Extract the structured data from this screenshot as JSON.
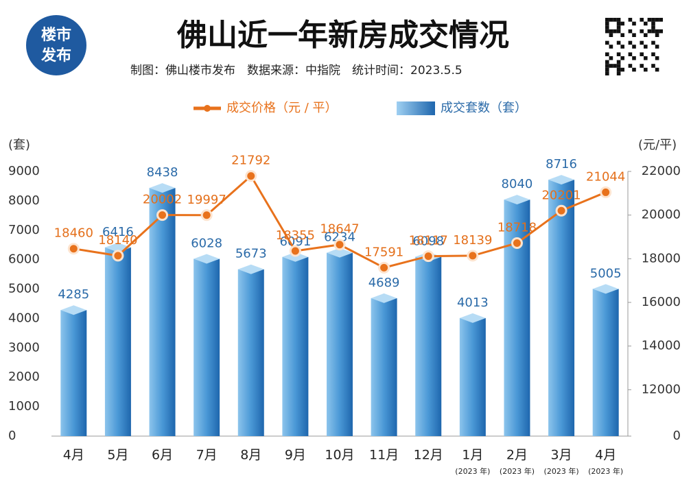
{
  "chart_data": {
    "type": "bar_line",
    "logo": [
      "楼市",
      "发布"
    ],
    "title": "佛山近一年新房成交情况",
    "subtitle": "制图：佛山楼市发布　数据来源：中指院　统计时间：2023.5.5",
    "y_label": "(套)",
    "y2_label": "(元/平)",
    "categories": [
      "4月",
      "5月",
      "6月",
      "7月",
      "8月",
      "9月",
      "10月",
      "11月",
      "12月",
      "1月",
      "2月",
      "3月",
      "4月"
    ],
    "category_notes": [
      null,
      null,
      null,
      null,
      null,
      null,
      null,
      null,
      null,
      "(2023 年)",
      "(2023 年)",
      "(2023 年)",
      "(2023 年)"
    ],
    "series": [
      {
        "name": "成交价格（元 / 平）",
        "color": "#e8721c",
        "axis": "y2",
        "type": "line",
        "values": [
          18460,
          18140,
          20002,
          19997,
          21792,
          18355,
          18647,
          17591,
          18117,
          18139,
          18718,
          20201,
          21044
        ]
      },
      {
        "name": "成交套数（套）",
        "color": "#2a7bc0",
        "type": "bar",
        "values": [
          4285,
          6416,
          8438,
          6028,
          5673,
          6091,
          6234,
          4689,
          6098,
          4013,
          8040,
          8716,
          5005
        ]
      }
    ],
    "ylim": [
      0,
      9000
    ],
    "yticks": [
      0,
      1000,
      2000,
      3000,
      4000,
      5000,
      6000,
      7000,
      8000,
      9000
    ],
    "y2lim": [
      0,
      22000
    ],
    "y2_axis_break": [
      0,
      10000
    ],
    "y2ticks": [
      0,
      12000,
      14000,
      16000,
      18000,
      20000,
      22000
    ]
  }
}
